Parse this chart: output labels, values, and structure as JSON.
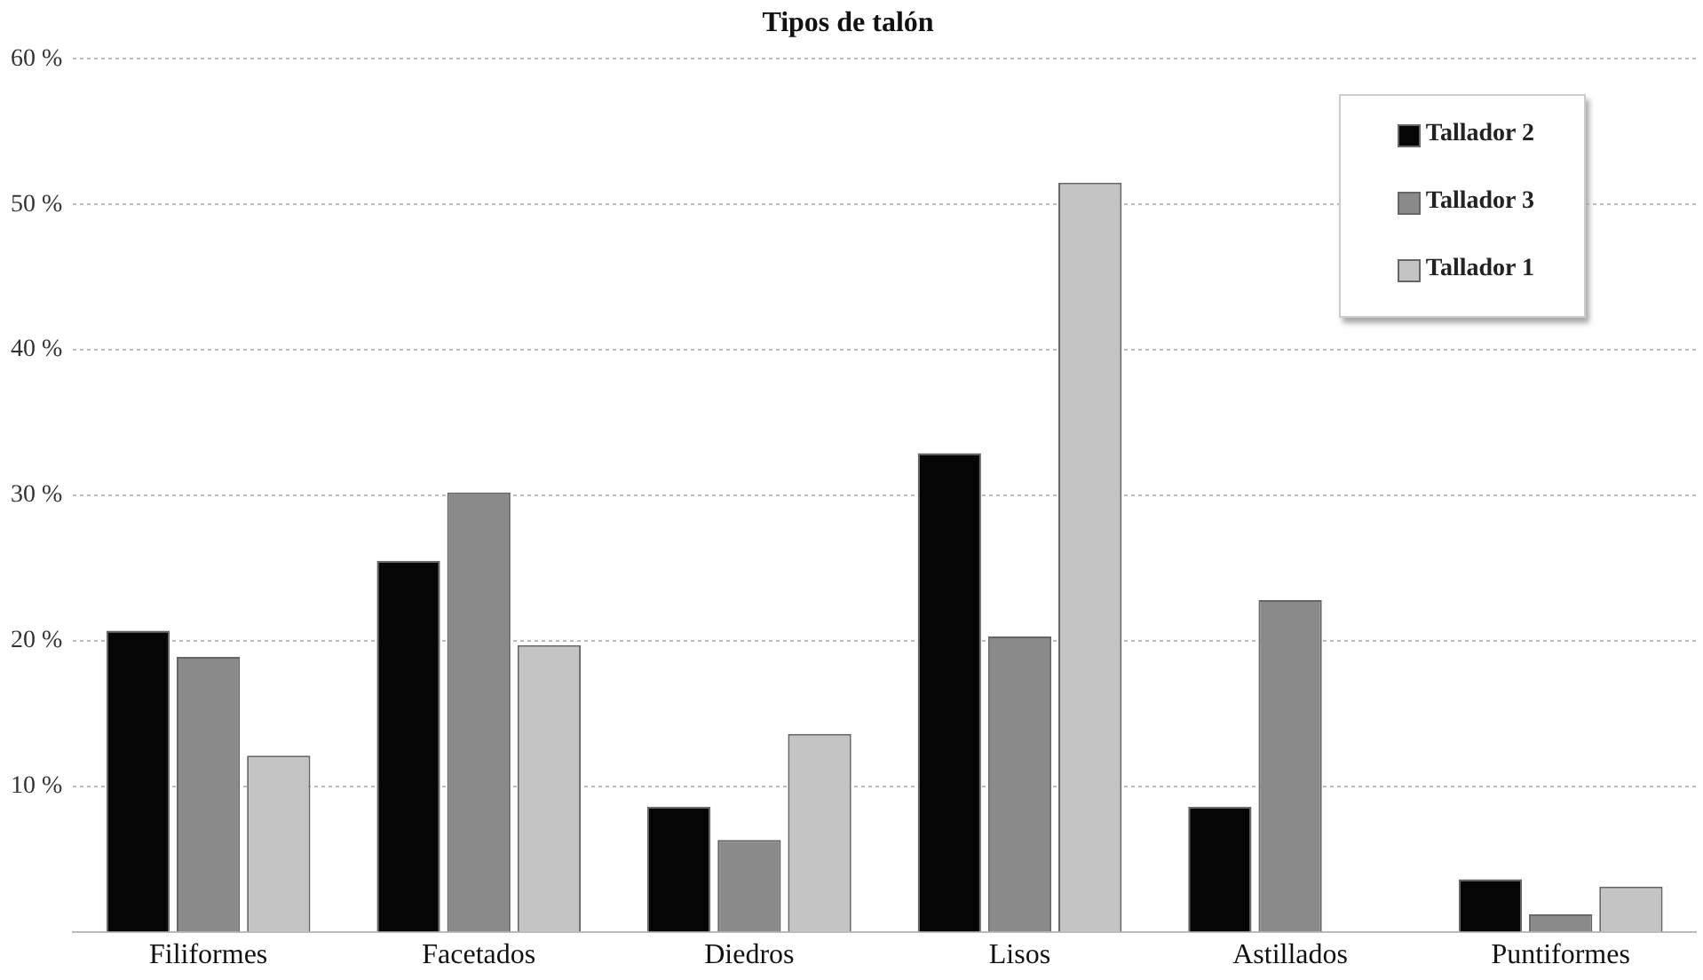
{
  "chart_data": {
    "type": "bar",
    "title": "Tipos de talón",
    "categories": [
      "Filiformes",
      "Facetados",
      "Diedros",
      "Lisos",
      "Astillados",
      "Puntiformes"
    ],
    "series": [
      {
        "name": "Tallador 2",
        "color": "#050505",
        "values": [
          20.7,
          25.5,
          8.6,
          32.9,
          8.6,
          3.6
        ]
      },
      {
        "name": "Tallador 3",
        "color": "#8a8a8a",
        "values": [
          18.9,
          30.2,
          6.3,
          20.3,
          22.8,
          1.2
        ]
      },
      {
        "name": "Tallador 1",
        "color": "#c4c4c4",
        "values": [
          12.1,
          19.7,
          13.6,
          51.5,
          0,
          3.1
        ]
      }
    ],
    "ylim": [
      0,
      60
    ],
    "yticks": [
      {
        "value": 10,
        "label": "10 %"
      },
      {
        "value": 20,
        "label": "20 %"
      },
      {
        "value": 30,
        "label": "30 %"
      },
      {
        "value": 40,
        "label": "40 %"
      },
      {
        "value": 50,
        "label": "50 %"
      },
      {
        "value": 60,
        "label": "60 %"
      }
    ],
    "grid": "y",
    "legend": "top right"
  }
}
